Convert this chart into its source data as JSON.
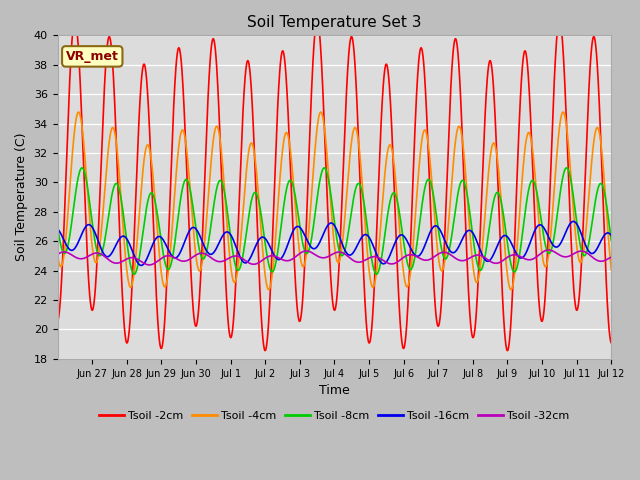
{
  "title": "Soil Temperature Set 3",
  "xlabel": "Time",
  "ylabel": "Soil Temperature (C)",
  "ylim": [
    18,
    40
  ],
  "yticks": [
    18,
    20,
    22,
    24,
    26,
    28,
    30,
    32,
    34,
    36,
    38,
    40
  ],
  "xtick_labels": [
    "Jun 27",
    "Jun 28",
    "Jun 29",
    "Jun 30",
    "Jul 1",
    "Jul 2",
    "Jul 3",
    "Jul 4",
    "Jul 5",
    "Jul 6",
    "Jul 7",
    "Jul 8",
    "Jul 9",
    "Jul 10",
    "Jul 11",
    "Jul 12"
  ],
  "annotation_text": "VR_met",
  "annotation_color": "#8B0000",
  "annotation_bg": "#FFFFC0",
  "fig_bg": "#BEBEBE",
  "plot_bg": "#DCDCDC",
  "series": {
    "Tsoil -2cm": {
      "color": "#FF0000",
      "lw": 1.2
    },
    "Tsoil -4cm": {
      "color": "#FF8C00",
      "lw": 1.2
    },
    "Tsoil -8cm": {
      "color": "#00CC00",
      "lw": 1.2
    },
    "Tsoil -16cm": {
      "color": "#0000EE",
      "lw": 1.2
    },
    "Tsoil -32cm": {
      "color": "#BB00BB",
      "lw": 1.2
    }
  },
  "n_days": 16,
  "n_pts_per_day": 96,
  "t2_base": 29.5,
  "t2_amp": 9.8,
  "t4_base": 28.5,
  "t4_amp": 5.0,
  "t4_lag_hrs": 2.5,
  "t8_base": 27.2,
  "t8_amp": 2.8,
  "t8_lag_hrs": 5.0,
  "t16_base": 25.7,
  "t16_amp": 0.9,
  "t16_lag_hrs": 10.0,
  "t32_base": 24.8,
  "t32_amp": 0.25,
  "t32_lag_hrs": 16.0
}
